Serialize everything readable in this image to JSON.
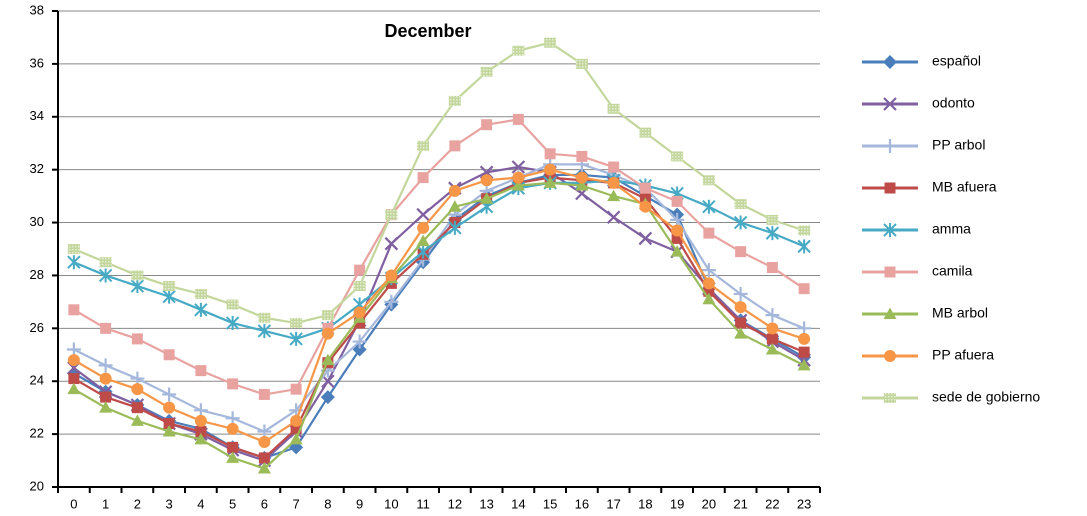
{
  "chart_data": {
    "type": "line",
    "title": "December",
    "categories": [
      "0",
      "1",
      "2",
      "3",
      "4",
      "5",
      "6",
      "7",
      "8",
      "9",
      "10",
      "11",
      "12",
      "13",
      "14",
      "15",
      "16",
      "17",
      "18",
      "19",
      "20",
      "21",
      "22",
      "23"
    ],
    "ylim": [
      20,
      38
    ],
    "yticks": [
      20,
      22,
      24,
      26,
      28,
      30,
      32,
      34,
      36,
      38
    ],
    "grid": true,
    "legend": "right",
    "series": [
      {
        "name": "español",
        "color": "#4a7ebb",
        "marker": "diamond",
        "values": [
          24.3,
          23.6,
          23.1,
          22.5,
          22.2,
          21.5,
          21.1,
          21.5,
          23.4,
          25.2,
          26.9,
          28.5,
          30.1,
          31.0,
          31.5,
          31.8,
          31.8,
          31.7,
          31.0,
          30.3,
          27.5,
          26.3,
          25.6,
          24.9
        ]
      },
      {
        "name": "odonto",
        "color": "#7f5f9f",
        "marker": "x",
        "values": [
          24.5,
          23.6,
          23.1,
          22.4,
          22.0,
          21.4,
          21.0,
          22.1,
          24.0,
          26.3,
          29.2,
          30.3,
          31.3,
          31.9,
          32.1,
          31.9,
          31.1,
          30.2,
          29.4,
          28.9,
          27.5,
          26.3,
          25.5,
          24.8
        ]
      },
      {
        "name": "PP arbol",
        "color": "#a5b8dc",
        "marker": "plus",
        "values": [
          25.2,
          24.6,
          24.1,
          23.5,
          22.9,
          22.6,
          22.1,
          22.9,
          24.4,
          25.5,
          27.0,
          28.6,
          30.3,
          31.2,
          31.7,
          32.2,
          32.2,
          31.8,
          31.3,
          30.1,
          28.2,
          27.3,
          26.5,
          26.0
        ]
      },
      {
        "name": "MB afuera",
        "color": "#be4b48",
        "marker": "square",
        "values": [
          24.1,
          23.4,
          23.0,
          22.4,
          22.1,
          21.5,
          21.1,
          22.2,
          24.7,
          26.2,
          27.7,
          28.8,
          30.0,
          30.9,
          31.5,
          31.7,
          31.6,
          31.5,
          30.9,
          29.4,
          27.4,
          26.2,
          25.6,
          25.1
        ]
      },
      {
        "name": "amma",
        "color": "#46aac5",
        "marker": "asterisk",
        "values": [
          28.5,
          28.0,
          27.6,
          27.2,
          26.7,
          26.2,
          25.9,
          25.6,
          26.0,
          26.9,
          27.9,
          28.9,
          29.8,
          30.6,
          31.3,
          31.5,
          31.5,
          31.6,
          31.4,
          31.1,
          30.6,
          30.0,
          29.6,
          29.1
        ]
      },
      {
        "name": "camila",
        "color": "#e8a3a1",
        "marker": "square",
        "values": [
          26.7,
          26.0,
          25.6,
          25.0,
          24.4,
          23.9,
          23.5,
          23.7,
          26.0,
          28.2,
          30.3,
          31.7,
          32.9,
          33.7,
          33.9,
          32.6,
          32.5,
          32.1,
          31.3,
          30.8,
          29.6,
          28.9,
          28.3,
          27.5
        ]
      },
      {
        "name": "MB arbol",
        "color": "#9bbb59",
        "marker": "triangle",
        "values": [
          23.7,
          23.0,
          22.5,
          22.1,
          21.8,
          21.1,
          20.7,
          21.8,
          24.8,
          26.4,
          27.9,
          29.3,
          30.6,
          30.9,
          31.4,
          31.5,
          31.4,
          31.0,
          30.7,
          28.9,
          27.1,
          25.8,
          25.2,
          24.6
        ]
      },
      {
        "name": "PP afuera",
        "color": "#f79646",
        "marker": "circle",
        "values": [
          24.8,
          24.1,
          23.7,
          23.0,
          22.5,
          22.2,
          21.7,
          22.5,
          25.8,
          26.6,
          28.0,
          29.8,
          31.2,
          31.6,
          31.7,
          32.0,
          31.7,
          31.5,
          30.6,
          29.7,
          27.7,
          26.8,
          26.0,
          25.6
        ]
      },
      {
        "name": "sede de gobierno",
        "color": "#c3d69b",
        "marker": "hatched",
        "values": [
          29.0,
          28.5,
          28.0,
          27.6,
          27.3,
          26.9,
          26.4,
          26.2,
          26.5,
          27.6,
          30.3,
          32.9,
          34.6,
          35.7,
          36.5,
          36.8,
          36.0,
          34.3,
          33.4,
          32.5,
          31.6,
          30.7,
          30.1,
          29.7
        ]
      }
    ]
  }
}
